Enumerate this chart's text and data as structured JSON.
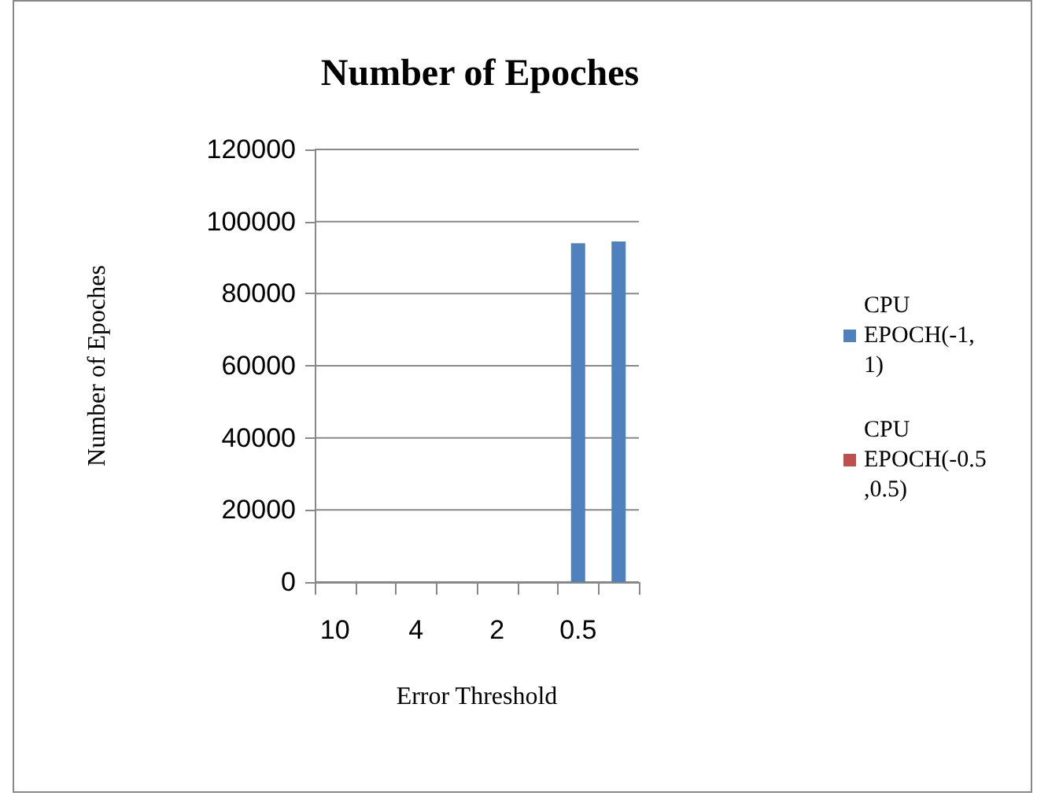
{
  "chart_data": {
    "type": "bar",
    "title": "Number of Epoches",
    "xlabel": "Error Threshold",
    "ylabel": "Number of Epoches",
    "categories": [
      "10",
      null,
      "4",
      null,
      "2",
      null,
      "0.5",
      null
    ],
    "series": [
      {
        "name": "CPU EPOCH(-1,1)",
        "color": "#4f81bd",
        "values": [
          0,
          0,
          0,
          0,
          0,
          0,
          94000,
          94500
        ]
      },
      {
        "name": "CPU EPOCH(-0.5,0.5)",
        "color": "#c0504d",
        "values": [
          0,
          0,
          0,
          0,
          0,
          0,
          0,
          0
        ]
      }
    ],
    "ylim": [
      0,
      120000
    ],
    "yticks": [
      0,
      20000,
      40000,
      60000,
      80000,
      100000,
      120000
    ],
    "grid": "y",
    "legend": "right"
  }
}
